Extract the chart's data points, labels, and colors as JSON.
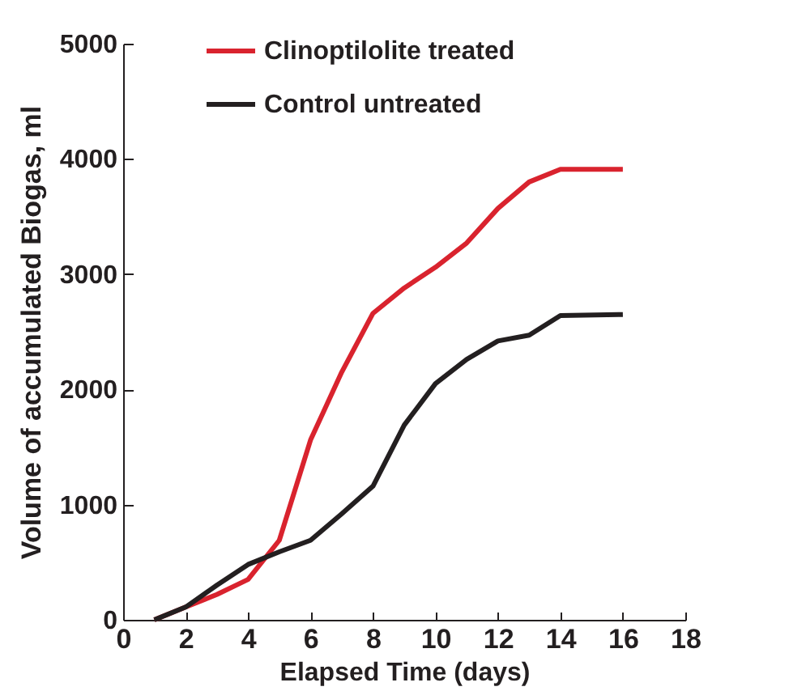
{
  "chart_data": {
    "type": "line",
    "xlabel": "Elapsed Time (days)",
    "ylabel": "Volume of accumulated Biogas, ml",
    "x": [
      1,
      2,
      3,
      4,
      5,
      6,
      7,
      8,
      9,
      10,
      11,
      12,
      13,
      14,
      16
    ],
    "series": [
      {
        "name": "Clinoptilolite treated",
        "color": "#d9232e",
        "values": [
          0,
          110,
          220,
          350,
          690,
          1560,
          2150,
          2660,
          2880,
          3060,
          3270,
          3570,
          3800,
          3910,
          3910
        ]
      },
      {
        "name": "Control untreated",
        "color": "#231f20",
        "values": [
          0,
          110,
          300,
          480,
          590,
          690,
          920,
          1160,
          1690,
          2050,
          2260,
          2420,
          2470,
          2640,
          2650
        ]
      }
    ],
    "xlim": [
      0,
      18
    ],
    "xticks": [
      0,
      2,
      4,
      6,
      8,
      10,
      12,
      14,
      16,
      18
    ],
    "ylim": [
      0,
      5000
    ],
    "yticks": [
      0,
      1000,
      2000,
      3000,
      4000,
      5000
    ],
    "grid": false,
    "legend": "top",
    "marker": "none",
    "line_style": "solid"
  }
}
